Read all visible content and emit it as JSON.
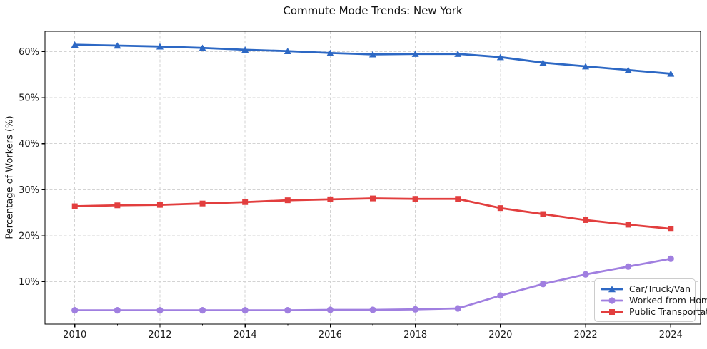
{
  "chart_data": {
    "type": "line",
    "title": "Commute Mode Trends: New York",
    "xlabel": "",
    "ylabel": "Percentage of Workers (%)",
    "x": [
      2010,
      2011,
      2012,
      2013,
      2014,
      2015,
      2016,
      2017,
      2018,
      2019,
      2020,
      2021,
      2022,
      2023,
      2024
    ],
    "series": [
      {
        "name": "Car/Truck/Van",
        "color": "#2d68c4",
        "marker": "triangle",
        "values": [
          61.5,
          61.3,
          61.1,
          60.8,
          60.4,
          60.1,
          59.7,
          59.4,
          59.5,
          59.5,
          58.8,
          57.6,
          56.8,
          56.0,
          55.2
        ]
      },
      {
        "name": "Worked from Home",
        "color": "#a07fe0",
        "marker": "circle",
        "values": [
          3.8,
          3.8,
          3.8,
          3.8,
          3.8,
          3.8,
          3.9,
          3.9,
          4.0,
          4.2,
          7.0,
          9.5,
          11.6,
          13.3,
          15.0
        ]
      },
      {
        "name": "Public Transportation",
        "color": "#e23e3e",
        "marker": "square",
        "values": [
          26.4,
          26.6,
          26.7,
          27.0,
          27.3,
          27.7,
          27.9,
          28.1,
          28.0,
          28.0,
          26.0,
          24.7,
          23.4,
          22.4,
          21.5
        ]
      }
    ],
    "xticks": [
      2010,
      2012,
      2014,
      2016,
      2018,
      2020,
      2022,
      2024
    ],
    "yticks": [
      10,
      20,
      30,
      40,
      50,
      60
    ],
    "ytick_labels": [
      "10%",
      "20%",
      "30%",
      "40%",
      "50%",
      "60%"
    ],
    "xlim": [
      2009.3,
      2024.7
    ],
    "ylim": [
      0.8,
      64.4
    ],
    "grid": true,
    "legend_position": "lower right",
    "grid_color": "#cccccc",
    "spine_color": "#000000",
    "tick_label_color": "#1a1a1a"
  }
}
